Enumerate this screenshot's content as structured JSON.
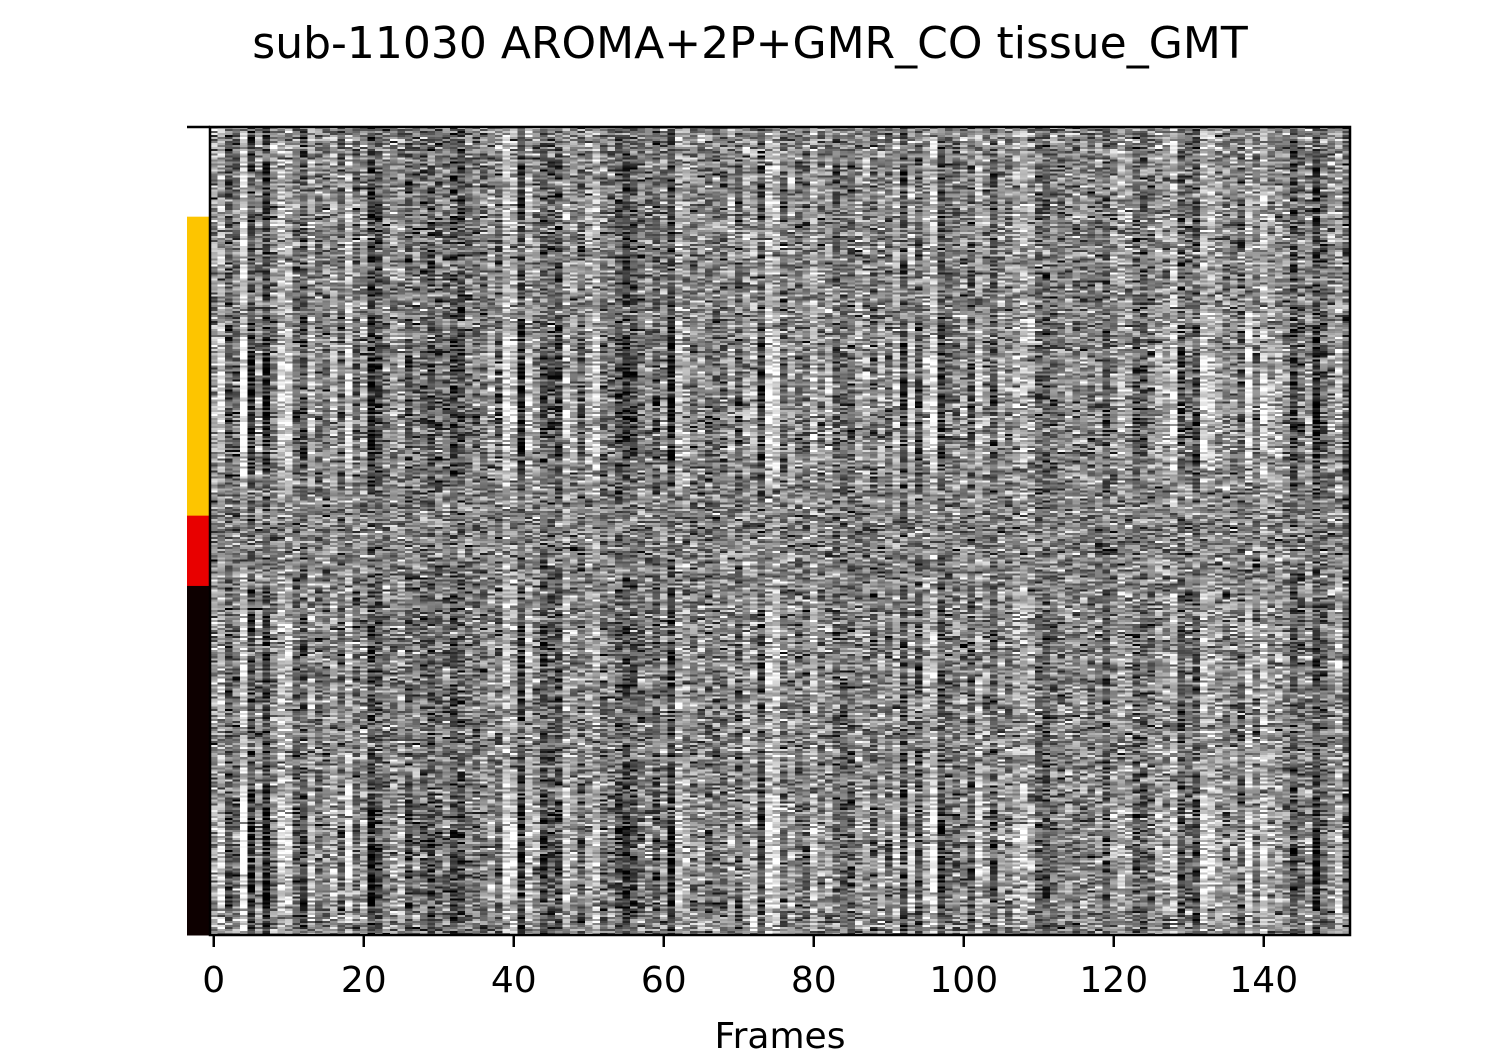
{
  "chart_data": {
    "type": "heatmap",
    "title": "sub-11030 AROMA+2P+GMR_CO tissue_GMT",
    "xlabel": "Frames",
    "ylabel": "",
    "xlim": [
      -0.5,
      151.5
    ],
    "n_frames": 152,
    "x_ticks": [
      0,
      20,
      40,
      60,
      80,
      100,
      120,
      140
    ],
    "x_tick_labels": [
      "0",
      "20",
      "40",
      "60",
      "80",
      "100",
      "120",
      "140"
    ],
    "colormap": "gray",
    "grid": false,
    "legend": "none",
    "tissue_segments": [
      {
        "color": "#ffffff",
        "fraction": 0.111
      },
      {
        "color": "#fdc500",
        "fraction": 0.37
      },
      {
        "color": "#e80000",
        "fraction": 0.087
      },
      {
        "color": "#0d0000",
        "fraction": 0.432
      }
    ],
    "colors": {
      "gray_matter_segment": "#fdc500",
      "white_matter_segment": "#e80000",
      "csf_segment": "#0d0000"
    }
  }
}
